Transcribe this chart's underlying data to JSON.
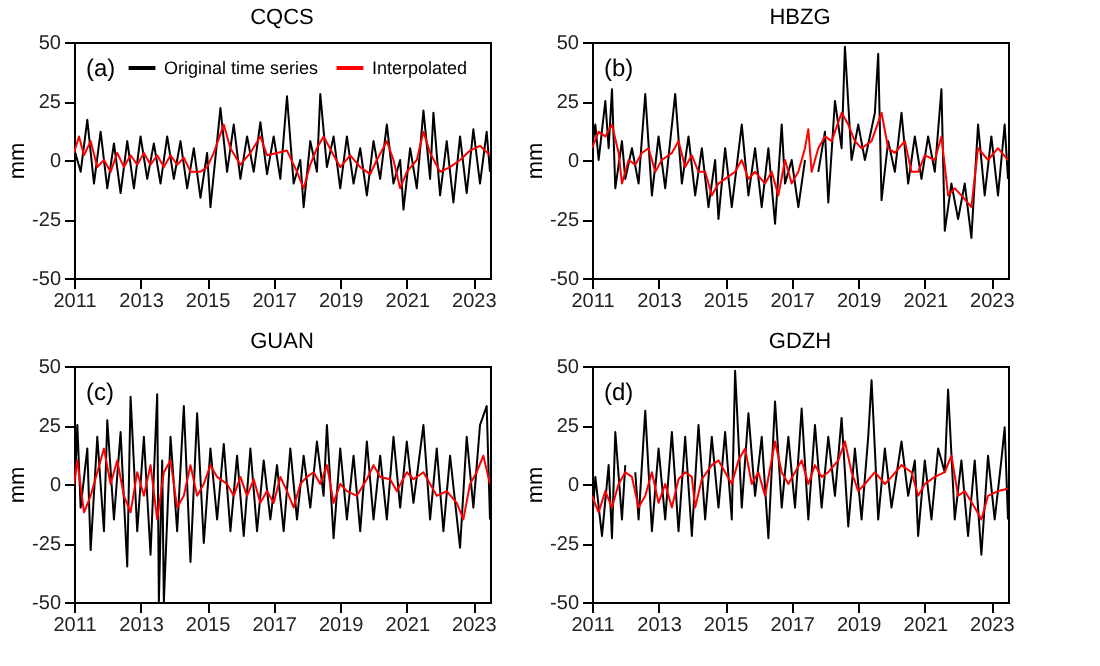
{
  "chart_data": [
    {
      "type": "line",
      "title": "CQCS",
      "ylabel": "mm",
      "annotations": [
        "(a)"
      ],
      "xlim": [
        2011,
        2023.5
      ],
      "xticks": [
        2011,
        2013,
        2015,
        2017,
        2019,
        2021,
        2023
      ],
      "ylim": [
        -50,
        50
      ],
      "yticks": [
        -50,
        -25,
        0,
        25,
        50
      ],
      "legend": "top",
      "series": [
        {
          "name": "Original time series",
          "color": "#000000",
          "x": [
            2011.0,
            2011.2,
            2011.4,
            2011.6,
            2011.8,
            2012.0,
            2012.2,
            2012.4,
            2012.6,
            2012.8,
            2013.0,
            2013.2,
            2013.4,
            2013.6,
            2013.8,
            2014.0,
            2014.2,
            2014.4,
            2014.6,
            2014.8,
            2015.0,
            2015.1,
            2015.4,
            2015.6,
            2015.8,
            2016.0,
            2016.2,
            2016.4,
            2016.6,
            2016.8,
            2017.0,
            2017.2,
            2017.4,
            2017.6,
            2017.8,
            2017.9,
            2018.1,
            2018.3,
            2018.4,
            2018.6,
            2018.8,
            2019.0,
            2019.2,
            2019.4,
            2019.6,
            2019.8,
            2020.0,
            2020.2,
            2020.4,
            2020.6,
            2020.8,
            2020.9,
            2021.1,
            2021.3,
            2021.5,
            2021.7,
            2021.8,
            2022.0,
            2022.2,
            2022.4,
            2022.6,
            2022.8,
            2023.0,
            2023.2,
            2023.4,
            2023.5
          ],
          "values": [
            5,
            -5,
            17,
            -10,
            12,
            -12,
            7,
            -14,
            8,
            -12,
            10,
            -8,
            7,
            -10,
            10,
            -8,
            8,
            -12,
            5,
            -16,
            3,
            -20,
            22,
            -5,
            15,
            -8,
            10,
            -5,
            16,
            -6,
            10,
            -8,
            27,
            -10,
            0,
            -20,
            8,
            -5,
            28,
            -3,
            10,
            -12,
            10,
            -10,
            5,
            -15,
            8,
            -8,
            15,
            -10,
            0,
            -21,
            5,
            -12,
            21,
            -8,
            20,
            -15,
            8,
            -18,
            10,
            -14,
            13,
            -10,
            12,
            -5
          ]
        },
        {
          "name": "Interpolated",
          "color": "#ff0000",
          "x": [
            2011.0,
            2011.15,
            2011.3,
            2011.5,
            2011.7,
            2011.9,
            2012.1,
            2012.3,
            2012.5,
            2012.7,
            2012.9,
            2013.1,
            2013.3,
            2013.5,
            2013.7,
            2013.9,
            2014.1,
            2014.3,
            2014.5,
            2014.8,
            2015.0,
            2015.2,
            2015.5,
            2015.7,
            2016.0,
            2016.3,
            2016.6,
            2016.8,
            2017.1,
            2017.4,
            2017.7,
            2017.9,
            2018.1,
            2018.3,
            2018.5,
            2018.8,
            2019.0,
            2019.3,
            2019.6,
            2019.9,
            2020.1,
            2020.4,
            2020.6,
            2020.8,
            2021.0,
            2021.3,
            2021.5,
            2021.7,
            2022.0,
            2022.3,
            2022.6,
            2022.9,
            2023.2,
            2023.5
          ],
          "values": [
            3,
            10,
            2,
            8,
            -3,
            0,
            -5,
            3,
            -3,
            2,
            -2,
            3,
            -2,
            2,
            -3,
            2,
            -2,
            1,
            -5,
            -5,
            -3,
            3,
            15,
            5,
            -2,
            3,
            10,
            2,
            3,
            4,
            -5,
            -12,
            -2,
            5,
            10,
            2,
            -3,
            2,
            -3,
            -6,
            0,
            8,
            0,
            -12,
            -5,
            0,
            12,
            3,
            -5,
            -3,
            0,
            4,
            6,
            2
          ]
        }
      ]
    },
    {
      "type": "line",
      "title": "HBZG",
      "ylabel": "mm",
      "annotations": [
        "(b)"
      ],
      "xlim": [
        2011,
        2023.5
      ],
      "xticks": [
        2011,
        2013,
        2015,
        2017,
        2019,
        2021,
        2023
      ],
      "ylim": [
        -50,
        50
      ],
      "yticks": [
        -50,
        -25,
        0,
        25,
        50
      ],
      "series": [
        {
          "color": "#000000",
          "x": [
            2011.0,
            2011.1,
            2011.2,
            2011.4,
            2011.5,
            2011.6,
            2011.7,
            2011.9,
            2012.0,
            2012.2,
            2012.4,
            2012.6,
            2012.8,
            2013.0,
            2013.2,
            2013.5,
            2013.7,
            2013.9,
            2014.1,
            2014.3,
            2014.5,
            2014.7,
            2014.8,
            2015.0,
            2015.2,
            2015.5,
            2015.7,
            2015.9,
            2016.1,
            2016.3,
            2016.5,
            2016.7,
            2016.8,
            2017.0,
            2017.2,
            2017.4,
            2017.55,
            2017.8,
            2018.0,
            2018.1,
            2018.3,
            2018.5,
            2018.6,
            2018.8,
            2019.0,
            2019.2,
            2019.5,
            2019.6,
            2019.7,
            2019.9,
            2020.1,
            2020.3,
            2020.5,
            2020.7,
            2020.9,
            2021.1,
            2021.3,
            2021.5,
            2021.6,
            2021.8,
            2022.0,
            2022.2,
            2022.4,
            2022.6,
            2022.8,
            2023.0,
            2023.2,
            2023.4,
            2023.5
          ],
          "values": [
            5,
            15,
            0,
            25,
            5,
            30,
            -12,
            8,
            -8,
            5,
            -10,
            28,
            -15,
            10,
            -12,
            28,
            -10,
            10,
            -15,
            5,
            -20,
            0,
            -25,
            5,
            -20,
            15,
            -15,
            5,
            -20,
            5,
            -27,
            15,
            -10,
            0,
            -20,
            0,
            null,
            -5,
            12,
            -18,
            25,
            5,
            48,
            0,
            15,
            0,
            20,
            45,
            -17,
            8,
            -5,
            20,
            -10,
            10,
            -8,
            10,
            -5,
            30,
            -30,
            -10,
            -25,
            -10,
            -33,
            15,
            -15,
            10,
            -15,
            15,
            -8
          ]
        },
        {
          "color": "#ff0000",
          "x": [
            2011.0,
            2011.2,
            2011.4,
            2011.6,
            2011.8,
            2011.9,
            2012.1,
            2012.3,
            2012.5,
            2012.7,
            2012.9,
            2013.1,
            2013.4,
            2013.6,
            2013.8,
            2014.0,
            2014.2,
            2014.4,
            2014.6,
            2014.8,
            2015.0,
            2015.3,
            2015.5,
            2015.7,
            2015.9,
            2016.2,
            2016.4,
            2016.6,
            2016.8,
            2017.0,
            2017.2,
            2017.4,
            2017.5,
            2017.6,
            2017.8,
            2018.0,
            2018.2,
            2018.5,
            2018.7,
            2018.9,
            2019.1,
            2019.4,
            2019.7,
            2019.9,
            2020.1,
            2020.4,
            2020.6,
            2020.8,
            2021.0,
            2021.3,
            2021.5,
            2021.7,
            2021.9,
            2022.1,
            2022.4,
            2022.6,
            2022.9,
            2023.2,
            2023.5
          ],
          "values": [
            5,
            12,
            10,
            15,
            3,
            -10,
            0,
            -2,
            3,
            5,
            -5,
            0,
            3,
            8,
            -3,
            2,
            -5,
            -5,
            -15,
            -10,
            -8,
            -5,
            0,
            -8,
            -5,
            -10,
            -5,
            -15,
            0,
            -10,
            -5,
            5,
            13,
            -5,
            5,
            10,
            8,
            20,
            15,
            8,
            5,
            8,
            20,
            5,
            3,
            8,
            -5,
            -5,
            2,
            0,
            10,
            -15,
            -12,
            -15,
            -20,
            5,
            0,
            5,
            0
          ]
        }
      ]
    },
    {
      "type": "line",
      "title": "GUAN",
      "ylabel": "mm",
      "annotations": [
        "(c)"
      ],
      "xlim": [
        2011,
        2023.5
      ],
      "xticks": [
        2011,
        2013,
        2015,
        2017,
        2019,
        2021,
        2023
      ],
      "ylim": [
        -50,
        50
      ],
      "yticks": [
        -50,
        -25,
        0,
        25,
        50
      ],
      "series": [
        {
          "color": "#000000",
          "x": [
            2011.0,
            2011.1,
            2011.2,
            2011.4,
            2011.5,
            2011.7,
            2011.9,
            2012.0,
            2012.2,
            2012.4,
            2012.6,
            2012.7,
            2012.9,
            2013.1,
            2013.3,
            2013.5,
            2013.55,
            2013.65,
            2013.7,
            2013.9,
            2014.1,
            2014.3,
            2014.5,
            2014.7,
            2014.9,
            2015.1,
            2015.3,
            2015.5,
            2015.7,
            2015.9,
            2016.1,
            2016.3,
            2016.5,
            2016.7,
            2016.9,
            2017.1,
            2017.3,
            2017.5,
            2017.7,
            2017.9,
            2018.1,
            2018.3,
            2018.5,
            2018.6,
            2018.8,
            2019.0,
            2019.2,
            2019.4,
            2019.6,
            2019.8,
            2020.0,
            2020.2,
            2020.4,
            2020.6,
            2020.8,
            2021.0,
            2021.2,
            2021.5,
            2021.7,
            2021.9,
            2022.1,
            2022.3,
            2022.6,
            2022.8,
            2023.0,
            2023.2,
            2023.4,
            2023.5
          ],
          "values": [
            -10,
            25,
            -10,
            15,
            -28,
            20,
            -20,
            27,
            -15,
            22,
            -35,
            37,
            -20,
            20,
            -30,
            38,
            -50,
            10,
            -50,
            20,
            -20,
            33,
            -33,
            30,
            -25,
            15,
            -15,
            17,
            -20,
            12,
            -22,
            15,
            -20,
            10,
            -15,
            8,
            -20,
            15,
            -15,
            12,
            -10,
            18,
            -5,
            25,
            -23,
            15,
            -15,
            12,
            -20,
            18,
            -15,
            12,
            -15,
            20,
            -10,
            18,
            -8,
            25,
            -15,
            15,
            -20,
            12,
            -27,
            20,
            -10,
            25,
            33,
            -15
          ]
        },
        {
          "color": "#ff0000",
          "x": [
            2011.0,
            2011.1,
            2011.3,
            2011.5,
            2011.7,
            2011.9,
            2012.1,
            2012.3,
            2012.5,
            2012.7,
            2012.9,
            2013.1,
            2013.3,
            2013.5,
            2013.7,
            2013.9,
            2014.1,
            2014.3,
            2014.5,
            2014.7,
            2014.9,
            2015.1,
            2015.3,
            2015.6,
            2015.8,
            2016.0,
            2016.2,
            2016.4,
            2016.6,
            2016.8,
            2017.0,
            2017.2,
            2017.4,
            2017.6,
            2017.8,
            2018.0,
            2018.2,
            2018.4,
            2018.6,
            2018.8,
            2019.0,
            2019.2,
            2019.5,
            2019.8,
            2020.0,
            2020.2,
            2020.5,
            2020.7,
            2021.0,
            2021.2,
            2021.5,
            2021.7,
            2021.9,
            2022.2,
            2022.5,
            2022.7,
            2022.9,
            2023.1,
            2023.3,
            2023.5
          ],
          "values": [
            0,
            10,
            -12,
            -5,
            5,
            15,
            0,
            10,
            -5,
            -12,
            5,
            -5,
            8,
            -15,
            5,
            10,
            -10,
            -5,
            8,
            -5,
            0,
            8,
            3,
            0,
            -5,
            3,
            -5,
            2,
            -8,
            -3,
            -8,
            3,
            -3,
            -10,
            0,
            3,
            5,
            0,
            8,
            -8,
            0,
            -3,
            -5,
            2,
            8,
            3,
            2,
            -3,
            5,
            2,
            5,
            0,
            -5,
            -3,
            -8,
            -15,
            0,
            5,
            12,
            0
          ]
        }
      ]
    },
    {
      "type": "line",
      "title": "GDZH",
      "ylabel": "mm",
      "annotations": [
        "(d)"
      ],
      "xlim": [
        2011,
        2023.5
      ],
      "xticks": [
        2011,
        2013,
        2015,
        2017,
        2019,
        2021,
        2023
      ],
      "ylim": [
        -50,
        50
      ],
      "yticks": [
        -50,
        -25,
        0,
        25,
        50
      ],
      "series": [
        {
          "color": "#000000",
          "x": [
            2011.0,
            2011.1,
            2011.3,
            2011.5,
            2011.6,
            2011.7,
            2011.9,
            2012.0,
            2012.15,
            2012.3,
            2012.4,
            2012.6,
            2012.8,
            2013.0,
            2013.2,
            2013.4,
            2013.6,
            2013.8,
            2014.0,
            2014.2,
            2014.4,
            2014.6,
            2014.8,
            2015.0,
            2015.2,
            2015.3,
            2015.5,
            2015.7,
            2015.9,
            2016.1,
            2016.3,
            2016.5,
            2016.7,
            2016.9,
            2017.1,
            2017.3,
            2017.5,
            2017.7,
            2017.9,
            2018.1,
            2018.3,
            2018.5,
            2018.7,
            2018.9,
            2019.1,
            2019.3,
            2019.4,
            2019.6,
            2019.8,
            2020.0,
            2020.3,
            2020.5,
            2020.7,
            2020.8,
            2021.0,
            2021.2,
            2021.4,
            2021.6,
            2021.7,
            2021.9,
            2022.1,
            2022.3,
            2022.5,
            2022.7,
            2022.9,
            2023.1,
            2023.3,
            2023.4,
            2023.5
          ],
          "values": [
            -17,
            3,
            -22,
            8,
            -23,
            22,
            -15,
            8,
            null,
            5,
            -15,
            31,
            -20,
            15,
            -15,
            22,
            -20,
            20,
            -22,
            25,
            -15,
            20,
            -10,
            22,
            -15,
            48,
            -10,
            30,
            -5,
            20,
            -23,
            35,
            -10,
            20,
            -10,
            32,
            -15,
            25,
            -10,
            20,
            -5,
            28,
            -18,
            15,
            -15,
            20,
            44,
            -15,
            15,
            -10,
            18,
            -5,
            10,
            -22,
            10,
            -15,
            15,
            5,
            40,
            -15,
            10,
            -22,
            10,
            -30,
            12,
            -15,
            10,
            24,
            -15
          ]
        },
        {
          "color": "#ff0000",
          "x": [
            2011.0,
            2011.2,
            2011.4,
            2011.6,
            2011.8,
            2012.0,
            2012.2,
            2012.4,
            2012.6,
            2012.8,
            2013.0,
            2013.2,
            2013.4,
            2013.6,
            2013.8,
            2014.0,
            2014.1,
            2014.3,
            2014.6,
            2014.8,
            2015.0,
            2015.2,
            2015.4,
            2015.6,
            2015.8,
            2016.0,
            2016.2,
            2016.5,
            2016.7,
            2016.9,
            2017.1,
            2017.3,
            2017.5,
            2017.7,
            2017.9,
            2018.1,
            2018.4,
            2018.6,
            2018.8,
            2019.0,
            2019.2,
            2019.5,
            2019.8,
            2020.0,
            2020.3,
            2020.6,
            2020.8,
            2021.0,
            2021.3,
            2021.6,
            2021.8,
            2022.0,
            2022.2,
            2022.5,
            2022.7,
            2022.9,
            2023.2,
            2023.5
          ],
          "values": [
            -5,
            -12,
            -3,
            -10,
            0,
            5,
            3,
            -10,
            -5,
            5,
            -8,
            0,
            -10,
            2,
            5,
            3,
            -10,
            2,
            8,
            10,
            5,
            0,
            10,
            15,
            0,
            5,
            -5,
            18,
            5,
            0,
            5,
            10,
            0,
            8,
            3,
            5,
            10,
            18,
            5,
            -3,
            0,
            5,
            0,
            3,
            8,
            5,
            -5,
            0,
            3,
            5,
            12,
            -5,
            -3,
            -10,
            -15,
            -5,
            -3,
            -2
          ]
        }
      ]
    }
  ]
}
